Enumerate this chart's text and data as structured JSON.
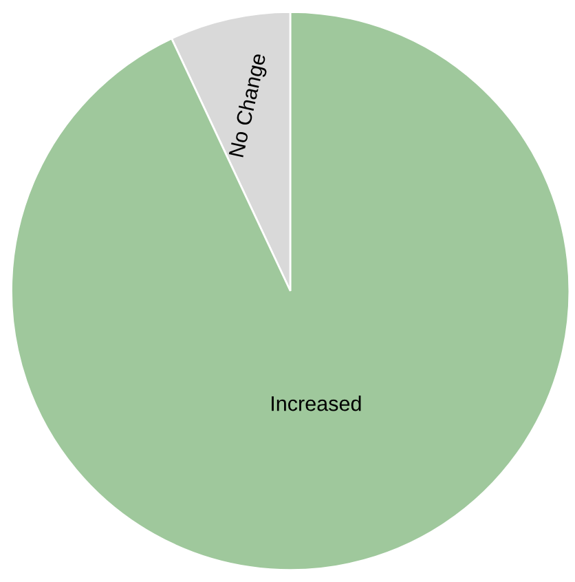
{
  "chart_data": {
    "type": "pie",
    "categories": [
      "No Change",
      "Increased"
    ],
    "values": [
      7,
      93
    ],
    "colors": [
      "#d9d9d9",
      "#9fc89c"
    ]
  }
}
